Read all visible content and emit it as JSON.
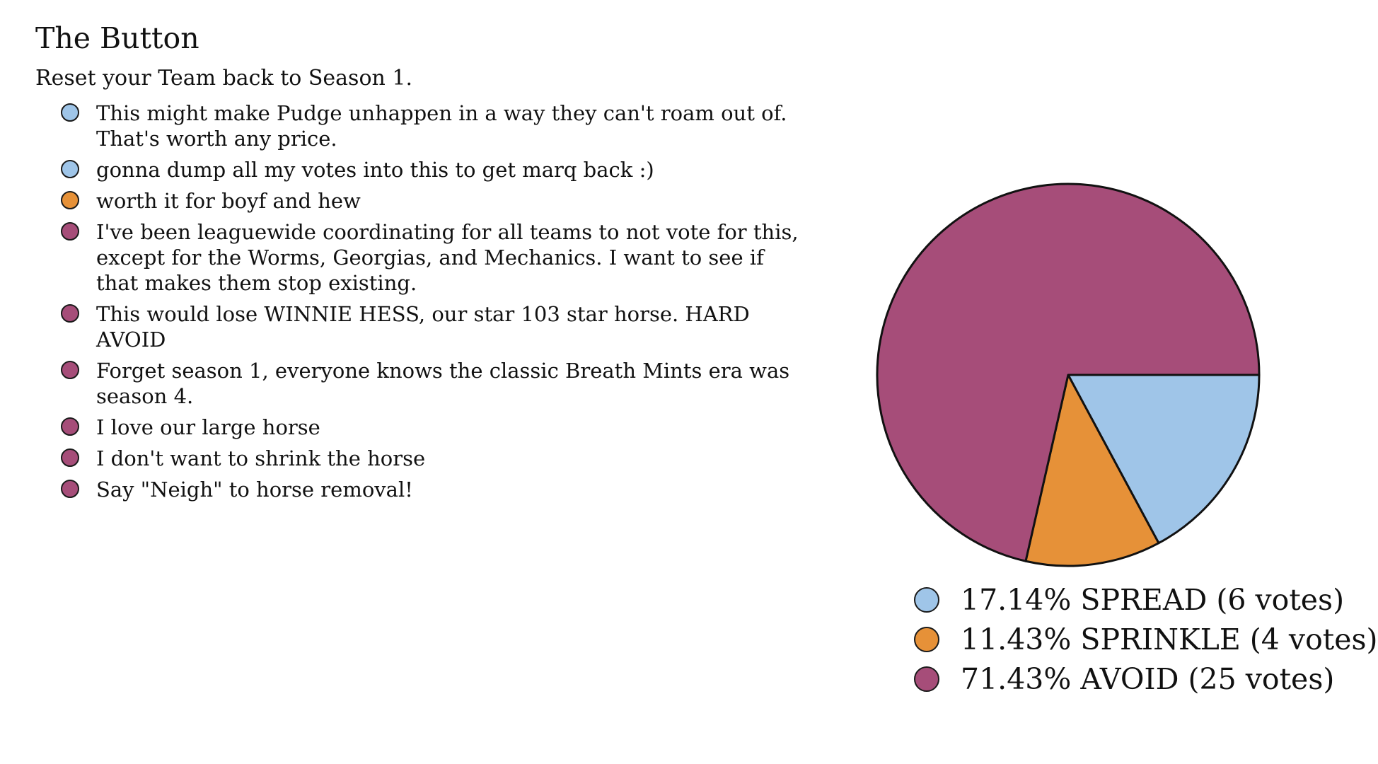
{
  "header": {
    "title": "The Button",
    "subtitle": "Reset your Team back to Season 1."
  },
  "colors": {
    "SPREAD": "#9fc5e8",
    "SPRINKLE": "#e69138",
    "AVOID": "#a64d79"
  },
  "comments": [
    {
      "vote": "SPREAD",
      "text": "This might make Pudge unhappen in a way they can't roam out of. That's worth any price."
    },
    {
      "vote": "SPREAD",
      "text": "gonna dump all my votes into this to get marq back :)"
    },
    {
      "vote": "SPRINKLE",
      "text": "worth it for boyf and hew"
    },
    {
      "vote": "AVOID",
      "text": "I've been leaguewide coordinating for all teams to not vote for this, except for the Worms, Georgias, and Mechanics. I want to see if that makes them stop existing."
    },
    {
      "vote": "AVOID",
      "text": "This would lose WINNIE HESS, our star 103 star horse. HARD AVOID"
    },
    {
      "vote": "AVOID",
      "text": "Forget season 1, everyone knows the classic Breath Mints era was season 4."
    },
    {
      "vote": "AVOID",
      "text": "I love our large horse"
    },
    {
      "vote": "AVOID",
      "text": "I don't want to shrink the horse"
    },
    {
      "vote": "AVOID",
      "text": "Say \"Neigh\" to horse removal!"
    }
  ],
  "chart_data": {
    "type": "pie",
    "title": "",
    "slices": [
      {
        "name": "SPREAD",
        "percent": 17.14,
        "votes": 6,
        "color": "#9fc5e8",
        "label": "17.14% SPREAD (6 votes)"
      },
      {
        "name": "SPRINKLE",
        "percent": 11.43,
        "votes": 4,
        "color": "#e69138",
        "label": "11.43% SPRINKLE (4 votes)"
      },
      {
        "name": "AVOID",
        "percent": 71.43,
        "votes": 25,
        "color": "#a64d79",
        "label": "71.43% AVOID (25 votes)"
      }
    ],
    "legend_position": "bottom"
  }
}
